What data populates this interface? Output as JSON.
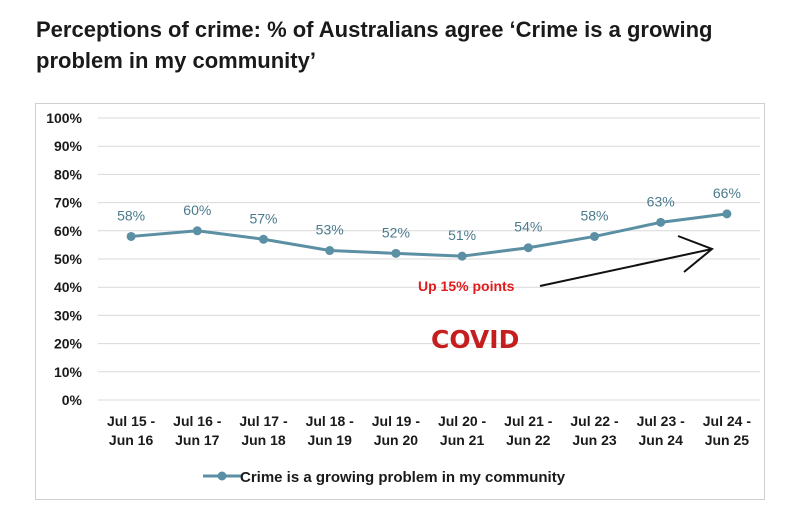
{
  "title": "Perceptions of crime: % of Australians agree ‘Crime is a growing problem in my community’",
  "chart_data": {
    "type": "line",
    "categories": [
      [
        "Jul 15 -",
        "Jun 16"
      ],
      [
        "Jul 16 -",
        "Jun 17"
      ],
      [
        "Jul 17 -",
        "Jun 18"
      ],
      [
        "Jul 18 -",
        "Jun 19"
      ],
      [
        "Jul 19 -",
        "Jun 20"
      ],
      [
        "Jul 20 -",
        "Jun 21"
      ],
      [
        "Jul 21 -",
        "Jun 22"
      ],
      [
        "Jul 22 -",
        "Jun 23"
      ],
      [
        "Jul 23 -",
        "Jun 24"
      ],
      [
        "Jul 24 -",
        "Jun 25"
      ]
    ],
    "series": [
      {
        "name": "Crime is a growing problem in my community",
        "values": [
          58,
          60,
          57,
          53,
          52,
          51,
          54,
          58,
          63,
          66
        ],
        "labels": [
          "58%",
          "60%",
          "57%",
          "53%",
          "52%",
          "51%",
          "54%",
          "58%",
          "63%",
          "66%"
        ],
        "color": "#5b8fa3"
      }
    ],
    "ylim": [
      0,
      100
    ],
    "yticks": [
      "0%",
      "10%",
      "20%",
      "30%",
      "40%",
      "50%",
      "60%",
      "70%",
      "80%",
      "90%",
      "100%"
    ],
    "grid": true,
    "legend": "bottom",
    "annotations": [
      {
        "text": "Up 15% points",
        "color": "#e01b1b"
      },
      {
        "text": "COVID",
        "color": "#c41e1e"
      }
    ]
  }
}
